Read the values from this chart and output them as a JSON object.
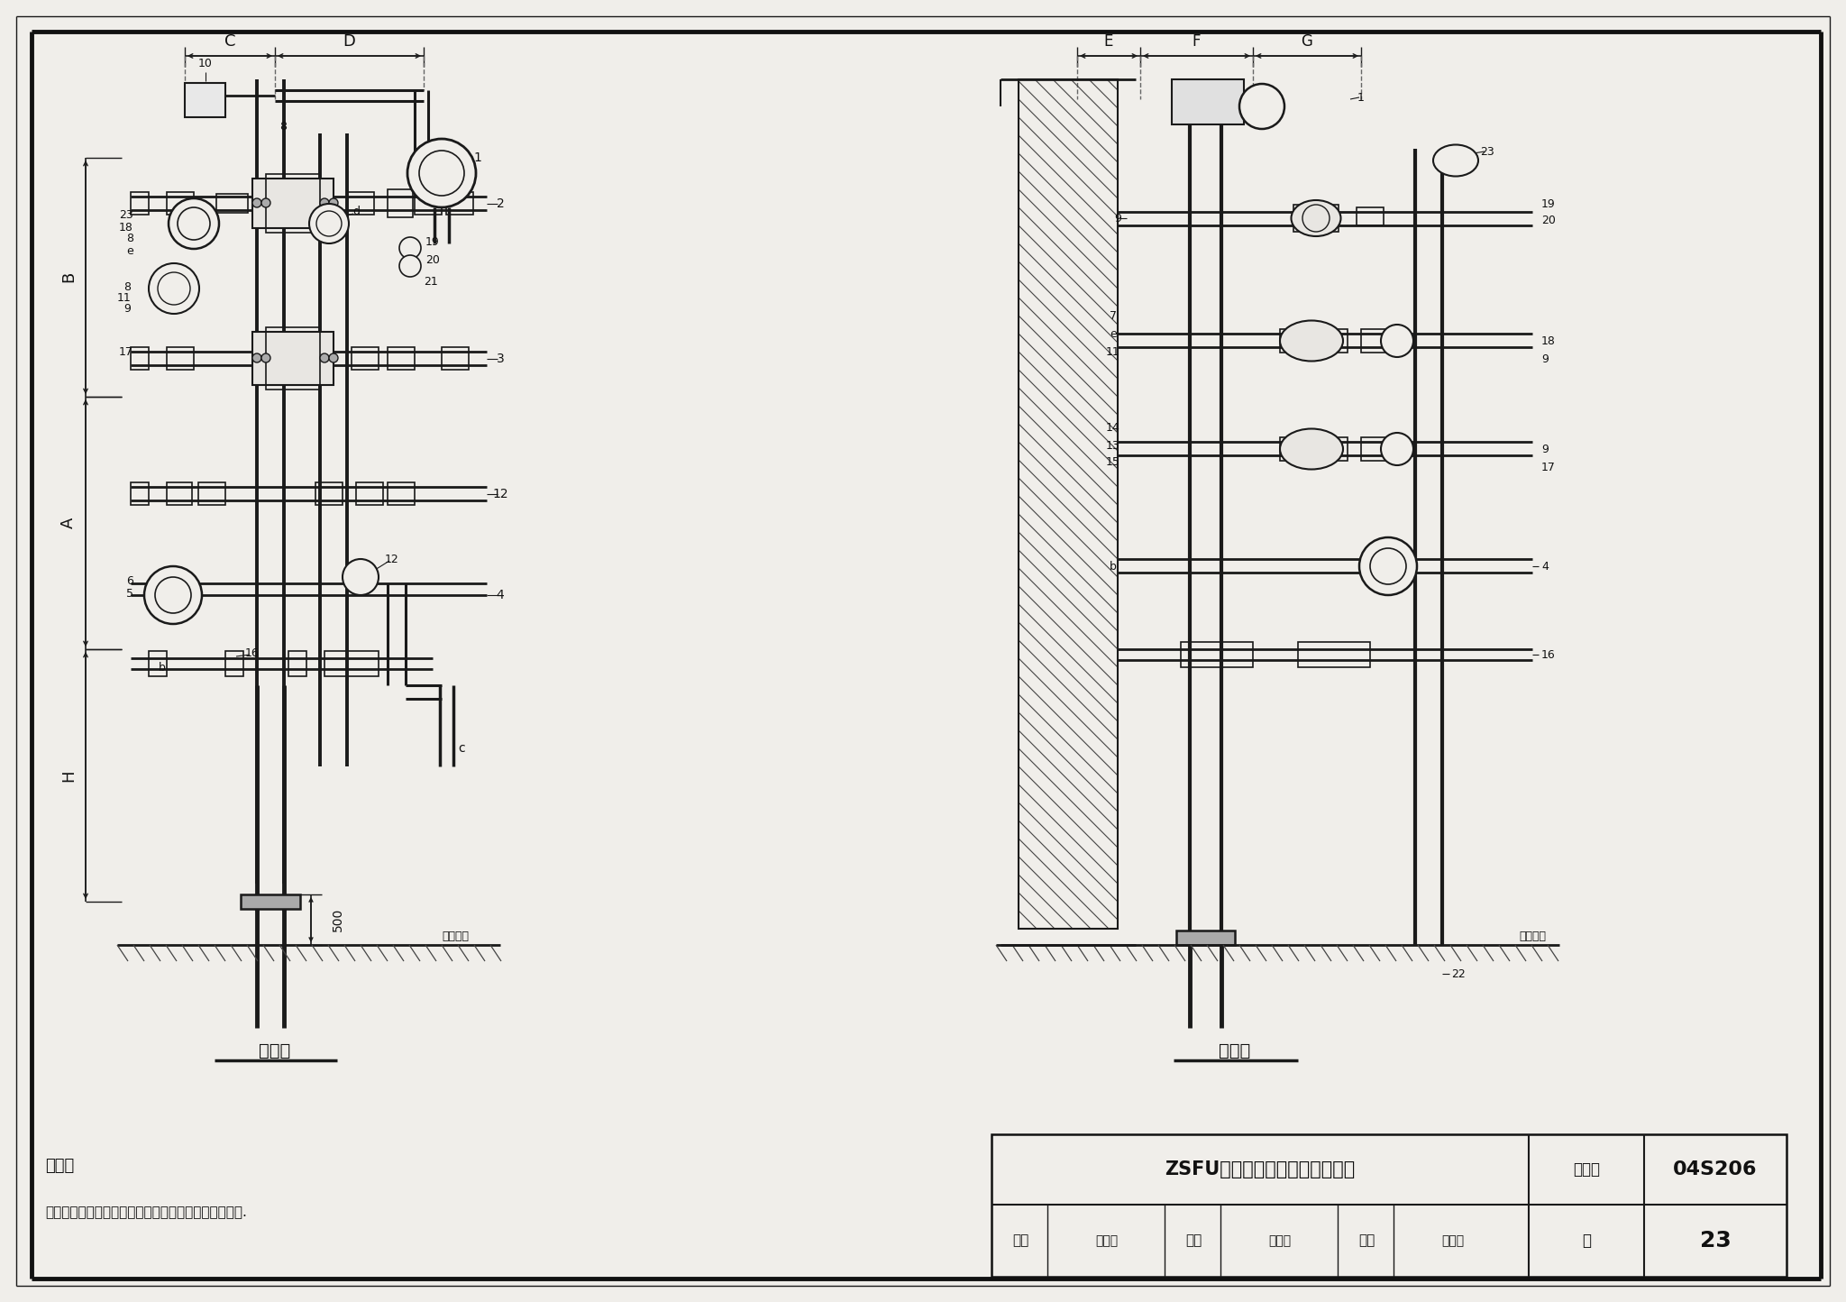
{
  "bg_color": "#f0eeea",
  "line_color": "#1a1a1a",
  "title_text": "ZSFU系列预作用报警阀组安装图",
  "atlas_no_label": "图集号",
  "atlas_no_value": "04S206",
  "page_label": "页",
  "page_value": "23",
  "review_label": "审核",
  "check_label": "校对",
  "design_label": "设计",
  "front_view_label": "正视图",
  "side_view_label": "侧视图",
  "note_title": "说明：",
  "note_text": "本图根据北京永吉安消防设备有限公司提供的资料绘制.",
  "dim_C": "C",
  "dim_D": "D",
  "dim_E": "E",
  "dim_F": "F",
  "dim_G": "G",
  "dim_B": "B",
  "dim_A": "A",
  "dim_H": "H",
  "dim_500": "500",
  "indoor_floor": "室内地面"
}
